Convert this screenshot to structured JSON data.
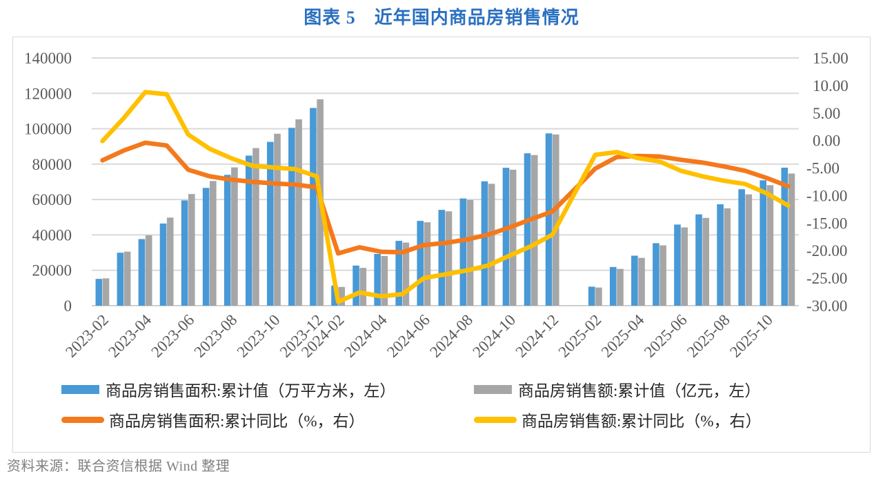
{
  "source": "资料来源：联合资信根据 Wind 整理",
  "colors": {
    "title": "#2a70c0",
    "frame": "#d9d9d9",
    "gridline": "#d9d9d9",
    "axis_line": "#bfbfbf",
    "axis_labels": "#595959",
    "legend_text": "#262626",
    "source_text": "#7f7f7f"
  },
  "chart_data": {
    "type": "combo (bar + line, dual axis)",
    "title": "图表 5　近年国内商品房销售情况",
    "xlabel": "",
    "ylabel_left": "",
    "ylabel_right": "",
    "grid": "horizontal only",
    "legend_position": "bottom, 2 columns",
    "left_axis": {
      "min": 0,
      "max": 140000,
      "step": 20000,
      "tick_labels": [
        "0",
        "20000",
        "40000",
        "60000",
        "80000",
        "100000",
        "120000",
        "140000"
      ]
    },
    "right_axis": {
      "min": -30,
      "max": 15,
      "step": 5,
      "tick_labels": [
        "15.00",
        "10.00",
        "5.00",
        "0.00",
        "-5.00",
        "-10.00",
        "-15.00",
        "-20.00",
        "-25.00",
        "-30.00"
      ]
    },
    "categories": [
      "2023-02",
      "2023-03",
      "2023-04",
      "2023-05",
      "2023-06",
      "2023-07",
      "2023-08",
      "2023-09",
      "2023-10",
      "2023-11",
      "2023-12",
      "2024-02",
      "2024-03",
      "2024-04",
      "2024-05",
      "2024-06",
      "2024-07",
      "2024-08",
      "2024-09",
      "2024-10",
      "2024-11",
      "2024-12",
      "",
      "2025-02",
      "2025-03",
      "2025-04",
      "2025-05",
      "2025-06",
      "2025-07",
      "2025-08",
      "2025-09",
      "2025-10",
      "2025-11"
    ],
    "x_tick_labels": [
      "2023-02",
      "2023-04",
      "2023-06",
      "2023-08",
      "2023-10",
      "2023-12",
      "2024-02",
      "2024-04",
      "2024-06",
      "2024-08",
      "2024-10",
      "2024-12",
      "2025-02",
      "2025-04",
      "2025-06",
      "2025-08",
      "2025-10"
    ],
    "series": [
      {
        "id": "area-cum",
        "name": "商品房销售面积:累计值（万平方米，左）",
        "type": "bar",
        "axis": "left",
        "color": "#4899d6",
        "values": [
          15133,
          29946,
          37636,
          46440,
          59515,
          66563,
          73949,
          84806,
          92579,
          100509,
          111735,
          11369,
          22668,
          29252,
          36642,
          47916,
          54149,
          60602,
          70284,
          77930,
          86118,
          97385,
          null,
          10746,
          21869,
          28262,
          35315,
          45851,
          51600,
          57300,
          65800,
          70846,
          78000
        ]
      },
      {
        "id": "value-cum",
        "name": "商品房销售额:累计值（亿元，左）",
        "type": "bar",
        "axis": "left",
        "color": "#a6a6a6",
        "values": [
          15449,
          30545,
          39750,
          49787,
          63092,
          70450,
          78158,
          89070,
          97161,
          105318,
          116622,
          10566,
          21355,
          28067,
          35665,
          47133,
          53330,
          59723,
          68880,
          76855,
          85125,
          96750,
          null,
          10259,
          20798,
          27035,
          34091,
          44241,
          49600,
          55000,
          62900,
          68097,
          74700
        ]
      },
      {
        "id": "area-yoy",
        "name": "商品房销售面积:累计同比（%，右）",
        "type": "line",
        "axis": "right",
        "color": "#f4791c",
        "values": [
          -3.6,
          -1.8,
          -0.4,
          -0.9,
          -5.3,
          -6.5,
          -7.1,
          -7.5,
          -7.8,
          -8.0,
          -8.5,
          -20.5,
          -19.4,
          -20.2,
          -20.3,
          -19.0,
          -18.6,
          -18.0,
          -17.1,
          -15.8,
          -14.3,
          -12.9,
          null,
          -5.1,
          -3.0,
          -2.8,
          -2.9,
          -3.5,
          -4.0,
          -4.7,
          -5.5,
          -6.8,
          -8.3
        ]
      },
      {
        "id": "value-yoy",
        "name": "商品房销售额:累计同比（%，右）",
        "type": "line",
        "axis": "right",
        "color": "#ffc000",
        "values": [
          -0.1,
          4.1,
          8.8,
          8.4,
          1.1,
          -1.5,
          -3.2,
          -4.6,
          -4.9,
          -5.2,
          -6.5,
          -29.3,
          -27.6,
          -28.3,
          -27.9,
          -25.0,
          -24.3,
          -23.6,
          -22.7,
          -20.9,
          -19.2,
          -17.1,
          null,
          -2.6,
          -2.1,
          -3.2,
          -3.8,
          -5.5,
          -6.5,
          -7.3,
          -7.9,
          -9.6,
          -11.8
        ]
      }
    ]
  }
}
